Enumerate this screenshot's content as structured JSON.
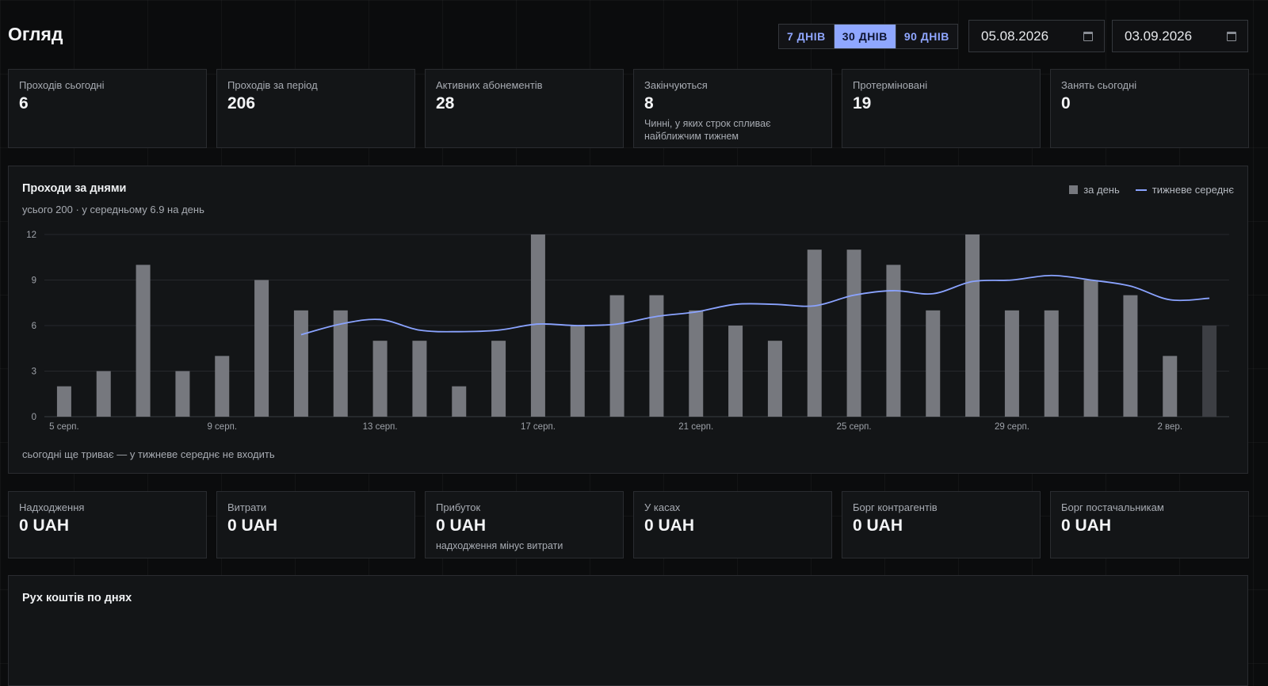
{
  "header": {
    "title": "Огляд",
    "ranges": [
      {
        "label": "7 ДНІВ",
        "active": false
      },
      {
        "label": "30 ДНІВ",
        "active": true
      },
      {
        "label": "90 ДНІВ",
        "active": false
      }
    ],
    "date_from": "05.08.2026",
    "date_to": "03.09.2026"
  },
  "stats": [
    {
      "label": "Проходів сьогодні",
      "value": "6",
      "note": ""
    },
    {
      "label": "Проходів за період",
      "value": "206",
      "note": ""
    },
    {
      "label": "Активних абонементів",
      "value": "28",
      "note": ""
    },
    {
      "label": "Закінчуються",
      "value": "8",
      "note": "Чинні, у яких строк спливає найближчим тижнем"
    },
    {
      "label": "Протерміновані",
      "value": "19",
      "note": ""
    },
    {
      "label": "Занять сьогодні",
      "value": "0",
      "note": ""
    }
  ],
  "chart": {
    "title": "Проходи за днями",
    "subtitle": "усього 200 · у середньому 6.9 на день",
    "legend_bar": "за день",
    "legend_line": "тижневе середнє",
    "footnote": "сьогодні ще триває — у тижневе середнє не входить"
  },
  "chart_data": {
    "type": "bar",
    "categories": [
      "5 серп.",
      "6 серп.",
      "7 серп.",
      "8 серп.",
      "9 серп.",
      "10 серп.",
      "11 серп.",
      "12 серп.",
      "13 серп.",
      "14 серп.",
      "15 серп.",
      "16 серп.",
      "17 серп.",
      "18 серп.",
      "19 серп.",
      "20 серп.",
      "21 серп.",
      "22 серп.",
      "23 серп.",
      "24 серп.",
      "25 серп.",
      "26 серп.",
      "27 серп.",
      "28 серп.",
      "29 серп.",
      "30 серп.",
      "31 серп.",
      "1 вер.",
      "2 вер.",
      "3 вер."
    ],
    "tick_labels": [
      "5 серп.",
      "9 серп.",
      "13 серп.",
      "17 серп.",
      "21 серп.",
      "25 серп.",
      "29 серп.",
      "2 вер."
    ],
    "series": [
      {
        "name": "за день",
        "type": "bar",
        "values": [
          2,
          3,
          10,
          3,
          4,
          9,
          7,
          7,
          5,
          5,
          2,
          5,
          12,
          6,
          8,
          8,
          7,
          6,
          5,
          11,
          11,
          10,
          7,
          12,
          7,
          7,
          9,
          8,
          4,
          6
        ]
      },
      {
        "name": "тижневе середнє",
        "type": "line",
        "values": [
          null,
          null,
          null,
          null,
          null,
          null,
          5.4,
          6.1,
          6.4,
          5.7,
          5.6,
          5.7,
          6.1,
          6.0,
          6.1,
          6.6,
          6.9,
          7.4,
          7.4,
          7.3,
          8.0,
          8.3,
          8.1,
          8.9,
          9.0,
          9.3,
          9.0,
          8.6,
          7.7,
          7.8
        ]
      }
    ],
    "yticks": [
      0,
      3,
      6,
      9,
      12
    ],
    "ylim": [
      0,
      12
    ],
    "grid": true,
    "legend_position": "top-right",
    "colors": {
      "bar": "#76787e",
      "bar_today": "#3d3f44",
      "line": "#8aa3ff",
      "grid": "#26282c",
      "tick_text": "#9ea2a9"
    }
  },
  "finance": [
    {
      "label": "Надходження",
      "value": "0 UAH",
      "note": ""
    },
    {
      "label": "Витрати",
      "value": "0 UAH",
      "note": ""
    },
    {
      "label": "Прибуток",
      "value": "0 UAH",
      "note": "надходження мінус витрати"
    },
    {
      "label": "У касах",
      "value": "0 UAH",
      "note": ""
    },
    {
      "label": "Борг контрагентів",
      "value": "0 UAH",
      "note": ""
    },
    {
      "label": "Борг постачальникам",
      "value": "0 UAH",
      "note": ""
    }
  ],
  "cashflow": {
    "title": "Рух коштів по днях"
  }
}
